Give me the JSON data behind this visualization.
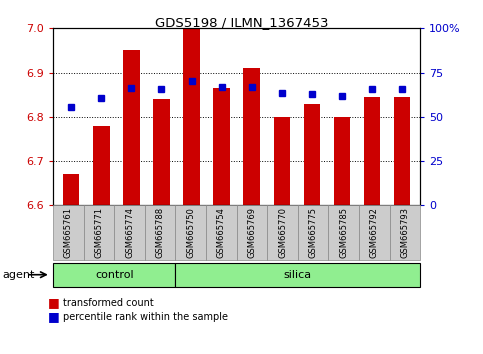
{
  "title": "GDS5198 / ILMN_1367453",
  "samples": [
    "GSM665761",
    "GSM665771",
    "GSM665774",
    "GSM665788",
    "GSM665750",
    "GSM665754",
    "GSM665769",
    "GSM665770",
    "GSM665775",
    "GSM665785",
    "GSM665792",
    "GSM665793"
  ],
  "bar_values": [
    6.67,
    6.78,
    6.95,
    6.84,
    7.0,
    6.865,
    6.91,
    6.8,
    6.83,
    6.8,
    6.845,
    6.845
  ],
  "blue_values": [
    6.822,
    6.843,
    6.865,
    6.862,
    6.88,
    6.868,
    6.868,
    6.853,
    6.852,
    6.847,
    6.862,
    6.862
  ],
  "ylim": [
    6.6,
    7.0
  ],
  "y2lim": [
    0,
    100
  ],
  "yticks": [
    6.6,
    6.7,
    6.8,
    6.9,
    7.0
  ],
  "y2ticks": [
    0,
    25,
    50,
    75,
    100
  ],
  "bar_color": "#cc0000",
  "blue_color": "#0000cc",
  "control_samples": 4,
  "control_color": "#90ee90",
  "silica_color": "#90ee90",
  "bar_bottom": 6.6,
  "tick_label_bg": "#cccccc",
  "tick_label_edge": "#888888"
}
